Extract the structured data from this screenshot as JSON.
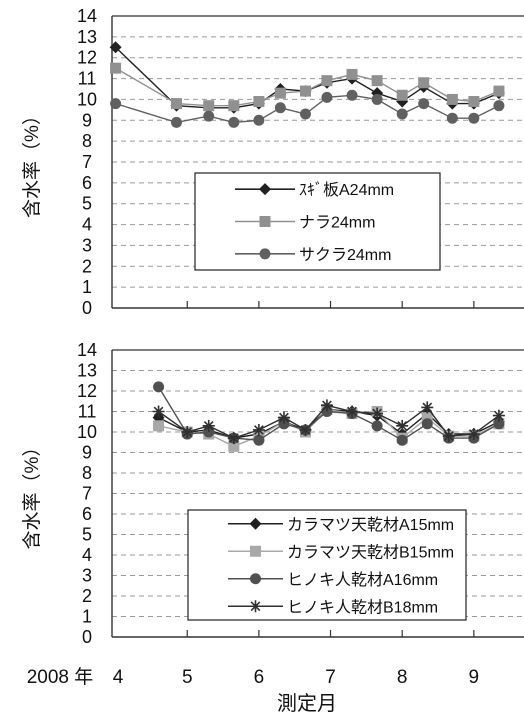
{
  "chart_data": [
    {
      "type": "line",
      "ylabel": "含水率（%）",
      "ylim": [
        0,
        14
      ],
      "yticks": [
        "0",
        "1",
        "2",
        "3",
        "4",
        "5",
        "6",
        "7",
        "8",
        "9",
        "10",
        "11",
        "12",
        "13",
        "14"
      ],
      "grid": "horizontal-dashed",
      "legend_position": "center-right",
      "x": [
        4.0,
        4.85,
        5.3,
        5.65,
        6.0,
        6.3,
        6.65,
        6.95,
        7.3,
        7.65,
        8.0,
        8.3,
        8.7,
        9.0,
        9.35
      ],
      "series": [
        {
          "name": "ｽｷﾞ板A24mm",
          "marker": "diamond",
          "color": "#202020",
          "values": [
            12.5,
            9.7,
            9.6,
            9.6,
            9.8,
            10.5,
            10.4,
            10.8,
            11.0,
            10.3,
            9.9,
            10.6,
            9.8,
            9.8,
            10.3
          ]
        },
        {
          "name": "ナラ24mm",
          "marker": "square",
          "color": "#909090",
          "values": [
            11.5,
            9.8,
            9.7,
            9.7,
            9.9,
            10.3,
            10.4,
            10.9,
            11.2,
            10.9,
            10.2,
            10.8,
            10.0,
            9.9,
            10.4
          ]
        },
        {
          "name": "サクラ24mm",
          "marker": "circle",
          "color": "#606060",
          "values": [
            9.8,
            8.9,
            9.2,
            8.9,
            9.0,
            9.6,
            9.3,
            10.1,
            10.2,
            10.0,
            9.3,
            9.8,
            9.1,
            9.1,
            9.7
          ]
        }
      ]
    },
    {
      "type": "line",
      "ylabel": "含水率（%）",
      "ylim": [
        0,
        14
      ],
      "yticks": [
        "0",
        "1",
        "2",
        "3",
        "4",
        "5",
        "6",
        "7",
        "8",
        "9",
        "10",
        "11",
        "12",
        "13",
        "14"
      ],
      "xlabel": "測定月",
      "xtick_prefix": "2008 年",
      "xticks": [
        "4",
        "5",
        "6",
        "7",
        "8",
        "9"
      ],
      "grid": "horizontal-dashed",
      "legend_position": "bottom-right",
      "x": [
        4.6,
        5.0,
        5.3,
        5.65,
        6.0,
        6.35,
        6.65,
        6.95,
        7.3,
        7.65,
        8.0,
        8.35,
        8.65,
        9.0,
        9.35
      ],
      "series": [
        {
          "name": "カラマツ天乾材A15mm",
          "marker": "diamond",
          "color": "#202020",
          "values": [
            10.7,
            10.0,
            10.1,
            9.7,
            9.9,
            10.5,
            10.1,
            11.1,
            11.0,
            10.8,
            9.9,
            10.9,
            9.9,
            9.9,
            10.5
          ]
        },
        {
          "name": "カラマツ天乾材B15mm",
          "marker": "square",
          "color": "#a8a8a8",
          "values": [
            10.3,
            10.0,
            9.9,
            9.3,
            9.8,
            10.5,
            10.0,
            11.1,
            10.9,
            11.0,
            9.7,
            10.7,
            9.8,
            9.8,
            10.4
          ]
        },
        {
          "name": "ヒノキ人乾材A16mm",
          "marker": "circle",
          "color": "#505050",
          "values": [
            12.2,
            9.9,
            10.0,
            9.7,
            9.6,
            10.4,
            10.1,
            11.0,
            10.9,
            10.3,
            9.6,
            10.4,
            9.7,
            9.7,
            10.4
          ]
        },
        {
          "name": "ヒノキ人乾材B18mm",
          "marker": "star",
          "color": "#303030",
          "values": [
            11.0,
            10.0,
            10.3,
            9.7,
            10.1,
            10.7,
            10.1,
            11.3,
            11.0,
            10.9,
            10.3,
            11.2,
            9.8,
            9.9,
            10.8
          ]
        }
      ]
    }
  ]
}
